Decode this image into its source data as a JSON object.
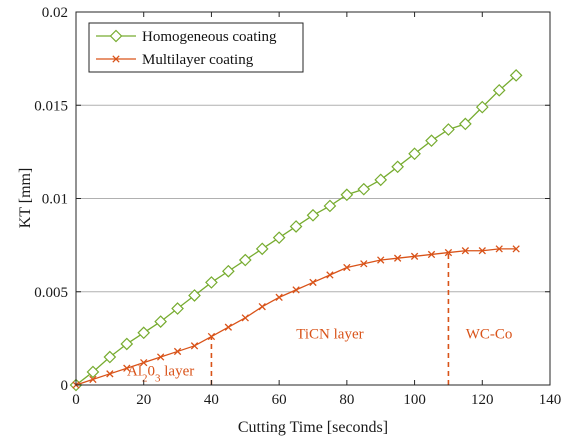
{
  "chart_data": {
    "type": "line",
    "xlabel": "Cutting Time [seconds]",
    "ylabel": "KT [mm]",
    "xlim": [
      0,
      140
    ],
    "ylim": [
      0,
      0.02
    ],
    "x_ticks": [
      0,
      20,
      40,
      60,
      80,
      100,
      120,
      140
    ],
    "x_tick_labels": [
      "0",
      "20",
      "40",
      "60",
      "80",
      "100",
      "120",
      "140"
    ],
    "y_ticks": [
      0,
      0.005,
      0.01,
      0.015,
      0.02
    ],
    "y_tick_labels": [
      "0",
      "0.005",
      "0.01",
      "0.015",
      "0.02"
    ],
    "grid": "horizontal",
    "legend_position": "top-left",
    "x": [
      0,
      5,
      10,
      15,
      20,
      25,
      30,
      35,
      40,
      45,
      50,
      55,
      60,
      65,
      70,
      75,
      80,
      85,
      90,
      95,
      100,
      105,
      110,
      115,
      120,
      125,
      130
    ],
    "series": [
      {
        "name": "Homogeneous coating",
        "color": "#77ac30",
        "marker": "diamond",
        "values": [
          0,
          0.0007,
          0.0015,
          0.0022,
          0.0028,
          0.0034,
          0.0041,
          0.0048,
          0.0055,
          0.0061,
          0.0067,
          0.0073,
          0.0079,
          0.0085,
          0.0091,
          0.0096,
          0.0102,
          0.0105,
          0.011,
          0.0117,
          0.0124,
          0.0131,
          0.0137,
          0.014,
          0.0149,
          0.0158,
          0.0166
        ]
      },
      {
        "name": "Multilayer coating",
        "color": "#d95319",
        "marker": "x",
        "values": [
          0,
          0.0003,
          0.0006,
          0.0009,
          0.0012,
          0.0015,
          0.0018,
          0.0021,
          0.0026,
          0.0031,
          0.0036,
          0.0042,
          0.0047,
          0.0051,
          0.0055,
          0.0059,
          0.0063,
          0.0065,
          0.0067,
          0.0068,
          0.0069,
          0.007,
          0.0071,
          0.0072,
          0.0072,
          0.0073,
          0.0073
        ]
      }
    ],
    "annotations": [
      {
        "type": "vline",
        "x": 40,
        "y_top": 0.0026,
        "color": "#d95319",
        "style": "dashed"
      },
      {
        "type": "vline",
        "x": 110,
        "y_top": 0.0071,
        "color": "#d95319",
        "style": "dashed"
      },
      {
        "type": "text",
        "name": "al2o3-layer",
        "parts": [
          {
            "t": "Al"
          },
          {
            "t": "2",
            "sub": true
          },
          {
            "t": "0"
          },
          {
            "t": "3",
            "sub": true
          },
          {
            "t": " layer"
          }
        ],
        "x": 25,
        "y": 0.0005
      },
      {
        "type": "text",
        "name": "ticn-layer",
        "parts": [
          {
            "t": "TiCN layer"
          }
        ],
        "x": 75,
        "y": 0.0025
      },
      {
        "type": "text",
        "name": "wc-co-layer",
        "parts": [
          {
            "t": "WC-Co"
          }
        ],
        "x": 122,
        "y": 0.0025
      }
    ]
  }
}
